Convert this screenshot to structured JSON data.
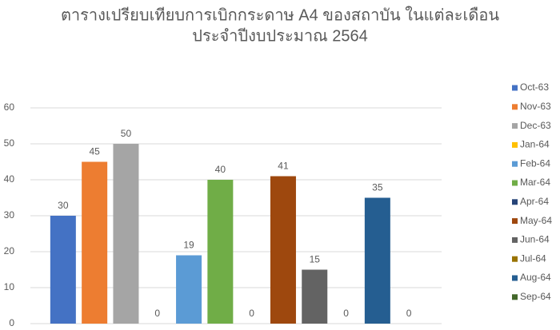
{
  "chart_data": {
    "type": "bar",
    "title": [
      "ตารางเปรียบเทียบการเบิกกระดาษ A4 ของสถาบัน ในแต่ละเดือน",
      "ประจำปีงบประมาณ 2564"
    ],
    "categories": [
      null
    ],
    "series": [
      {
        "name": "Oct-63",
        "color": "#4472c4",
        "values": [
          30
        ]
      },
      {
        "name": "Nov-63",
        "color": "#ed7d31",
        "values": [
          45
        ]
      },
      {
        "name": "Dec-63",
        "color": "#a5a5a5",
        "values": [
          50
        ]
      },
      {
        "name": "Jan-64",
        "color": "#ffc000",
        "values": [
          0
        ]
      },
      {
        "name": "Feb-64",
        "color": "#5b9bd5",
        "values": [
          19
        ]
      },
      {
        "name": "Mar-64",
        "color": "#70ad47",
        "values": [
          40
        ]
      },
      {
        "name": "Apr-64",
        "color": "#264478",
        "values": [
          0
        ]
      },
      {
        "name": "May-64",
        "color": "#9e480e",
        "values": [
          41
        ]
      },
      {
        "name": "Jun-64",
        "color": "#636363",
        "values": [
          15
        ]
      },
      {
        "name": "Jul-64",
        "color": "#997300",
        "values": [
          0
        ]
      },
      {
        "name": "Aug-64",
        "color": "#255e91",
        "values": [
          35
        ]
      },
      {
        "name": "Sep-64",
        "color": "#43682b",
        "values": [
          0
        ]
      }
    ],
    "ylim": [
      0,
      60
    ],
    "yticks": [
      0,
      10,
      20,
      30,
      40,
      50,
      60
    ],
    "grid": true,
    "legend": "right"
  }
}
